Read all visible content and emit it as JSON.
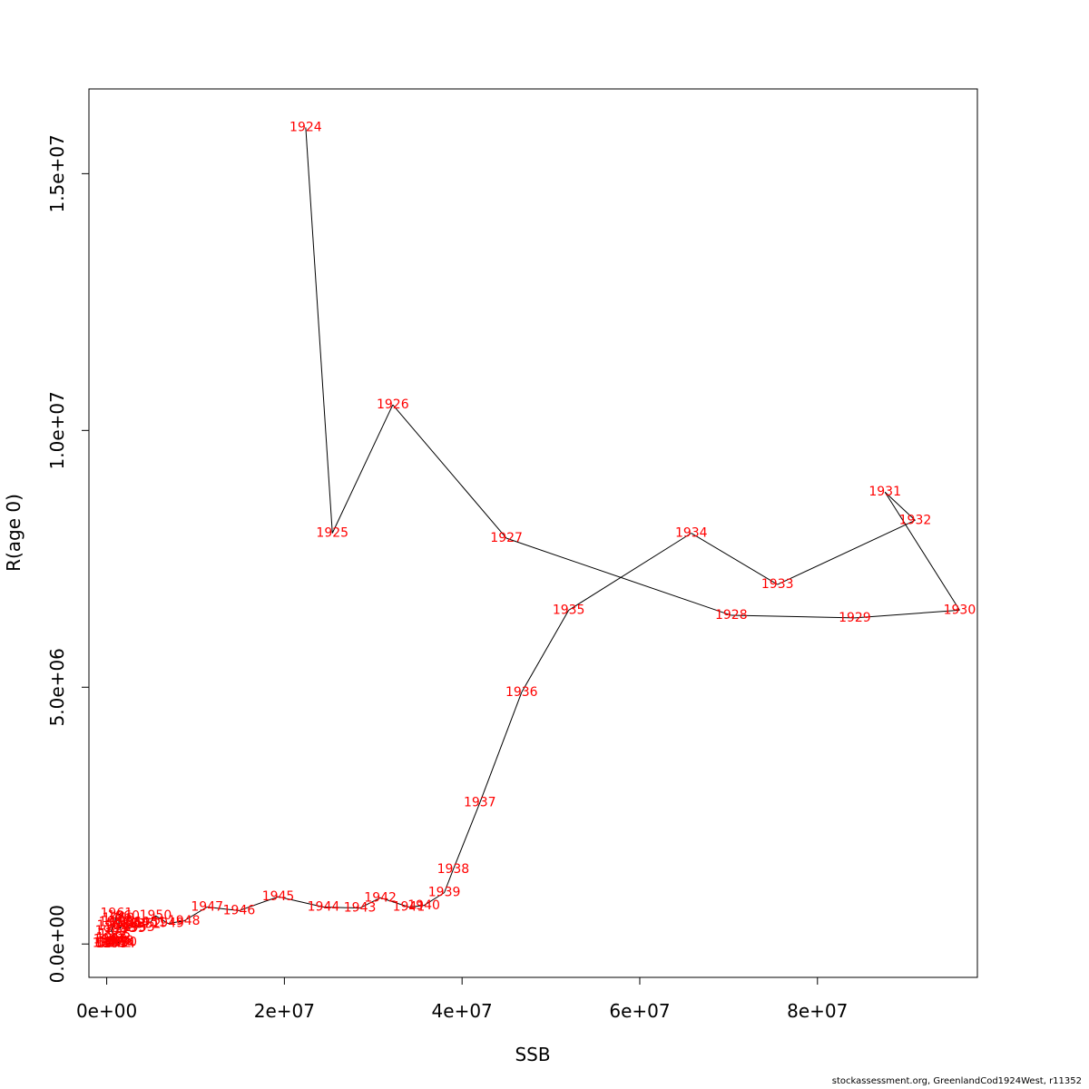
{
  "chart_data": {
    "type": "line",
    "xlabel": "SSB",
    "ylabel": "R(age 0)",
    "xlim": [
      -2000000,
      98000000
    ],
    "ylim": [
      -650000,
      16650000
    ],
    "x_ticks": [
      0,
      20000000,
      40000000,
      60000000,
      80000000
    ],
    "x_tick_labels": [
      "0e+00",
      "2e+07",
      "4e+07",
      "6e+07",
      "8e+07"
    ],
    "y_ticks": [
      0,
      5000000,
      10000000,
      15000000
    ],
    "y_tick_labels": [
      "0.0e+00",
      "5.0e+06",
      "1.0e+07",
      "1.5e+07"
    ],
    "line_color": "#000000",
    "label_color": "#ff0000",
    "points": [
      {
        "year": "1924",
        "x": 22400000,
        "y": 15900000
      },
      {
        "year": "1925",
        "x": 25400000,
        "y": 8000000
      },
      {
        "year": "1926",
        "x": 32200000,
        "y": 10500000
      },
      {
        "year": "1927",
        "x": 45000000,
        "y": 7900000
      },
      {
        "year": "1928",
        "x": 70300000,
        "y": 6400000
      },
      {
        "year": "1929",
        "x": 84200000,
        "y": 6350000
      },
      {
        "year": "1930",
        "x": 96000000,
        "y": 6500000
      },
      {
        "year": "1931",
        "x": 87600000,
        "y": 8800000
      },
      {
        "year": "1932",
        "x": 91000000,
        "y": 8250000
      },
      {
        "year": "1933",
        "x": 75500000,
        "y": 7000000
      },
      {
        "year": "1934",
        "x": 65800000,
        "y": 8000000
      },
      {
        "year": "1935",
        "x": 52000000,
        "y": 6500000
      },
      {
        "year": "1936",
        "x": 46700000,
        "y": 4900000
      },
      {
        "year": "1937",
        "x": 42000000,
        "y": 2750000
      },
      {
        "year": "1938",
        "x": 39000000,
        "y": 1450000
      },
      {
        "year": "1939",
        "x": 38000000,
        "y": 1000000
      },
      {
        "year": "1940",
        "x": 35700000,
        "y": 750000
      },
      {
        "year": "1941",
        "x": 34000000,
        "y": 720000
      },
      {
        "year": "1942",
        "x": 30800000,
        "y": 900000
      },
      {
        "year": "1943",
        "x": 28500000,
        "y": 700000
      },
      {
        "year": "1944",
        "x": 24400000,
        "y": 720000
      },
      {
        "year": "1945",
        "x": 19300000,
        "y": 920000
      },
      {
        "year": "1946",
        "x": 14900000,
        "y": 650000
      },
      {
        "year": "1947",
        "x": 11300000,
        "y": 720000
      },
      {
        "year": "1948",
        "x": 8700000,
        "y": 450000
      },
      {
        "year": "1949",
        "x": 6900000,
        "y": 400000
      },
      {
        "year": "1950",
        "x": 5500000,
        "y": 550000
      },
      {
        "year": "1951",
        "x": 4900000,
        "y": 420000
      },
      {
        "year": "1952",
        "x": 4300000,
        "y": 380000
      },
      {
        "year": "1953",
        "x": 3600000,
        "y": 320000
      },
      {
        "year": "1954",
        "x": 3000000,
        "y": 400000
      },
      {
        "year": "1955",
        "x": 2600000,
        "y": 300000
      },
      {
        "year": "1956",
        "x": 2100000,
        "y": 420000
      },
      {
        "year": "1957",
        "x": 1800000,
        "y": 380000
      },
      {
        "year": "1958",
        "x": 1500000,
        "y": 300000
      },
      {
        "year": "1959",
        "x": 1300000,
        "y": 500000
      },
      {
        "year": "1960",
        "x": 1900000,
        "y": 540000
      },
      {
        "year": "1961",
        "x": 1100000,
        "y": 600000
      },
      {
        "year": "1962",
        "x": 900000,
        "y": 420000
      },
      {
        "year": "1963",
        "x": 700000,
        "y": 360000
      },
      {
        "year": "1964",
        "x": 500000,
        "y": 250000
      },
      {
        "year": "1965",
        "x": 900000,
        "y": 180000
      },
      {
        "year": "1966",
        "x": 600000,
        "y": 120000
      },
      {
        "year": "1967",
        "x": 300000,
        "y": 80000
      },
      {
        "year": "1968",
        "x": 1200000,
        "y": 60000
      },
      {
        "year": "1969",
        "x": 800000,
        "y": 40000
      },
      {
        "year": "1970",
        "x": 1600000,
        "y": 30000
      },
      {
        "year": "1971",
        "x": 400000,
        "y": 20000
      },
      {
        "year": "1972",
        "x": 1000000,
        "y": 10000
      },
      {
        "year": "1973",
        "x": 200000,
        "y": 10000
      },
      {
        "year": "1974",
        "x": 1400000,
        "y": 5000
      },
      {
        "year": "1975",
        "x": 600000,
        "y": 5000
      }
    ]
  },
  "credit": "stockassessment.org, GreenlandCod1924West, r11352"
}
